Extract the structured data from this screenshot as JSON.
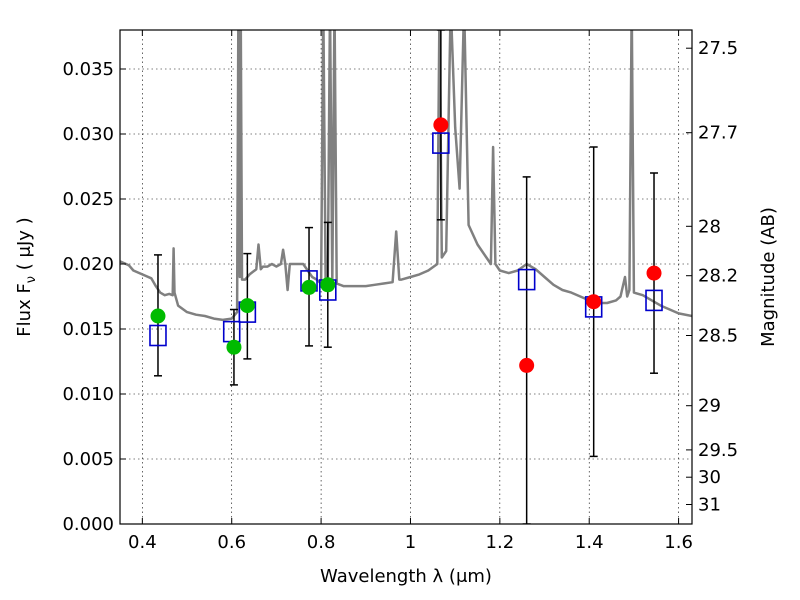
{
  "chart_data": {
    "type": "scatter",
    "xlabel": "Wavelength  λ (μm)",
    "ylabel": "Flux  F",
    "ylabel_sub": "ν",
    "ylabel_unit": "  ( μJy )",
    "ylabel_right": "Magnitude (AB)",
    "xlim": [
      0.35,
      1.63
    ],
    "ylim": [
      0.0,
      0.038
    ],
    "grid": true,
    "x_ticks": [
      0.4,
      0.6,
      0.8,
      1.0,
      1.2,
      1.4,
      1.6
    ],
    "x_tick_labels": [
      "0.4",
      "0.6",
      "0.8",
      "1",
      "1.2",
      "1.4",
      "1.6"
    ],
    "y_ticks": [
      0.0,
      0.005,
      0.01,
      0.015,
      0.02,
      0.025,
      0.03,
      0.035
    ],
    "y_tick_labels": [
      "0.000",
      "0.005",
      "0.010",
      "0.015",
      "0.020",
      "0.025",
      "0.030",
      "0.035"
    ],
    "right_ticks": [
      {
        "label": "27.5",
        "flux": 0.0366
      },
      {
        "label": "27.7",
        "flux": 0.0301
      },
      {
        "label": "28",
        "flux": 0.0229
      },
      {
        "label": "28.2",
        "flux": 0.0191
      },
      {
        "label": "28.5",
        "flux": 0.0145
      },
      {
        "label": "29",
        "flux": 0.0091
      },
      {
        "label": "29.5",
        "flux": 0.0057
      },
      {
        "label": "30",
        "flux": 0.0036
      },
      {
        "label": "31",
        "flux": 0.0015
      }
    ],
    "colors": {
      "template": "#808080",
      "green_points": "#00bb00",
      "red_points": "#ff0000",
      "model_boxes": "#0000cc",
      "errorbars": "#000000"
    },
    "template_spectrum": [
      [
        0.35,
        0.0202
      ],
      [
        0.37,
        0.0199
      ],
      [
        0.38,
        0.0195
      ],
      [
        0.4,
        0.0192
      ],
      [
        0.42,
        0.0189
      ],
      [
        0.43,
        0.0183
      ],
      [
        0.44,
        0.0178
      ],
      [
        0.45,
        0.0176
      ],
      [
        0.46,
        0.0177
      ],
      [
        0.468,
        0.0176
      ],
      [
        0.47,
        0.0212
      ],
      [
        0.472,
        0.0178
      ],
      [
        0.48,
        0.0168
      ],
      [
        0.5,
        0.0163
      ],
      [
        0.52,
        0.0161
      ],
      [
        0.54,
        0.016
      ],
      [
        0.56,
        0.0158
      ],
      [
        0.58,
        0.0157
      ],
      [
        0.6,
        0.0158
      ],
      [
        0.612,
        0.0163
      ],
      [
        0.615,
        0.04
      ],
      [
        0.618,
        0.019
      ],
      [
        0.62,
        0.04
      ],
      [
        0.623,
        0.0188
      ],
      [
        0.63,
        0.0188
      ],
      [
        0.64,
        0.0192
      ],
      [
        0.655,
        0.0196
      ],
      [
        0.66,
        0.0215
      ],
      [
        0.665,
        0.0196
      ],
      [
        0.67,
        0.0198
      ],
      [
        0.68,
        0.0198
      ],
      [
        0.69,
        0.02
      ],
      [
        0.7,
        0.0198
      ],
      [
        0.71,
        0.02
      ],
      [
        0.715,
        0.0211
      ],
      [
        0.72,
        0.02
      ],
      [
        0.725,
        0.018
      ],
      [
        0.73,
        0.02
      ],
      [
        0.74,
        0.02
      ],
      [
        0.76,
        0.02
      ],
      [
        0.77,
        0.0195
      ],
      [
        0.78,
        0.019
      ],
      [
        0.79,
        0.0188
      ],
      [
        0.8,
        0.0185
      ],
      [
        0.805,
        0.04
      ],
      [
        0.81,
        0.0188
      ],
      [
        0.815,
        0.0188
      ],
      [
        0.82,
        0.04
      ],
      [
        0.825,
        0.0185
      ],
      [
        0.83,
        0.04
      ],
      [
        0.835,
        0.0185
      ],
      [
        0.85,
        0.0183
      ],
      [
        0.87,
        0.0183
      ],
      [
        0.9,
        0.0183
      ],
      [
        0.92,
        0.0184
      ],
      [
        0.94,
        0.0185
      ],
      [
        0.96,
        0.0186
      ],
      [
        0.968,
        0.0225
      ],
      [
        0.975,
        0.0188
      ],
      [
        0.98,
        0.0188
      ],
      [
        1.0,
        0.019
      ],
      [
        1.02,
        0.0192
      ],
      [
        1.04,
        0.0195
      ],
      [
        1.06,
        0.02
      ],
      [
        1.065,
        0.04
      ],
      [
        1.07,
        0.0205
      ],
      [
        1.08,
        0.021
      ],
      [
        1.09,
        0.04
      ],
      [
        1.1,
        0.0305
      ],
      [
        1.11,
        0.0258
      ],
      [
        1.12,
        0.04
      ],
      [
        1.13,
        0.023
      ],
      [
        1.15,
        0.0215
      ],
      [
        1.17,
        0.0205
      ],
      [
        1.18,
        0.02
      ],
      [
        1.185,
        0.029
      ],
      [
        1.19,
        0.02
      ],
      [
        1.2,
        0.0195
      ],
      [
        1.22,
        0.0193
      ],
      [
        1.24,
        0.0195
      ],
      [
        1.26,
        0.02
      ],
      [
        1.28,
        0.0196
      ],
      [
        1.3,
        0.019
      ],
      [
        1.32,
        0.0184
      ],
      [
        1.34,
        0.018
      ],
      [
        1.36,
        0.0178
      ],
      [
        1.38,
        0.0175
      ],
      [
        1.4,
        0.0172
      ],
      [
        1.42,
        0.017
      ],
      [
        1.44,
        0.017
      ],
      [
        1.46,
        0.0172
      ],
      [
        1.47,
        0.0175
      ],
      [
        1.48,
        0.019
      ],
      [
        1.485,
        0.0175
      ],
      [
        1.49,
        0.018
      ],
      [
        1.495,
        0.04
      ],
      [
        1.5,
        0.0178
      ],
      [
        1.52,
        0.0176
      ],
      [
        1.54,
        0.0172
      ],
      [
        1.56,
        0.0168
      ],
      [
        1.58,
        0.0165
      ],
      [
        1.6,
        0.0162
      ],
      [
        1.63,
        0.016
      ]
    ],
    "observed_points": [
      {
        "x": 0.435,
        "y": 0.016,
        "err_low": 0.0114,
        "err_high": 0.0207,
        "color": "green"
      },
      {
        "x": 0.605,
        "y": 0.0136,
        "err_low": 0.0107,
        "err_high": 0.0165,
        "color": "green"
      },
      {
        "x": 0.635,
        "y": 0.0168,
        "err_low": 0.0127,
        "err_high": 0.0208,
        "color": "green"
      },
      {
        "x": 0.773,
        "y": 0.0182,
        "err_low": 0.0137,
        "err_high": 0.0228,
        "color": "green"
      },
      {
        "x": 0.815,
        "y": 0.0184,
        "err_low": 0.0136,
        "err_high": 0.0232,
        "color": "green"
      },
      {
        "x": 1.068,
        "y": 0.0307,
        "err_low": 0.0234,
        "err_high": 0.038,
        "color": "red"
      },
      {
        "x": 1.26,
        "y": 0.0122,
        "err_low": 0.0,
        "err_high": 0.0267,
        "color": "red"
      },
      {
        "x": 1.41,
        "y": 0.0171,
        "err_low": 0.0052,
        "err_high": 0.029,
        "color": "red"
      },
      {
        "x": 1.545,
        "y": 0.0193,
        "err_low": 0.0116,
        "err_high": 0.027,
        "color": "red"
      }
    ],
    "model_points": [
      {
        "x": 0.435,
        "y": 0.0145
      },
      {
        "x": 0.6,
        "y": 0.0148
      },
      {
        "x": 0.635,
        "y": 0.0163
      },
      {
        "x": 0.773,
        "y": 0.0187
      },
      {
        "x": 0.815,
        "y": 0.018
      },
      {
        "x": 1.068,
        "y": 0.0293
      },
      {
        "x": 1.26,
        "y": 0.0188
      },
      {
        "x": 1.41,
        "y": 0.0167
      },
      {
        "x": 1.545,
        "y": 0.0172
      }
    ]
  }
}
